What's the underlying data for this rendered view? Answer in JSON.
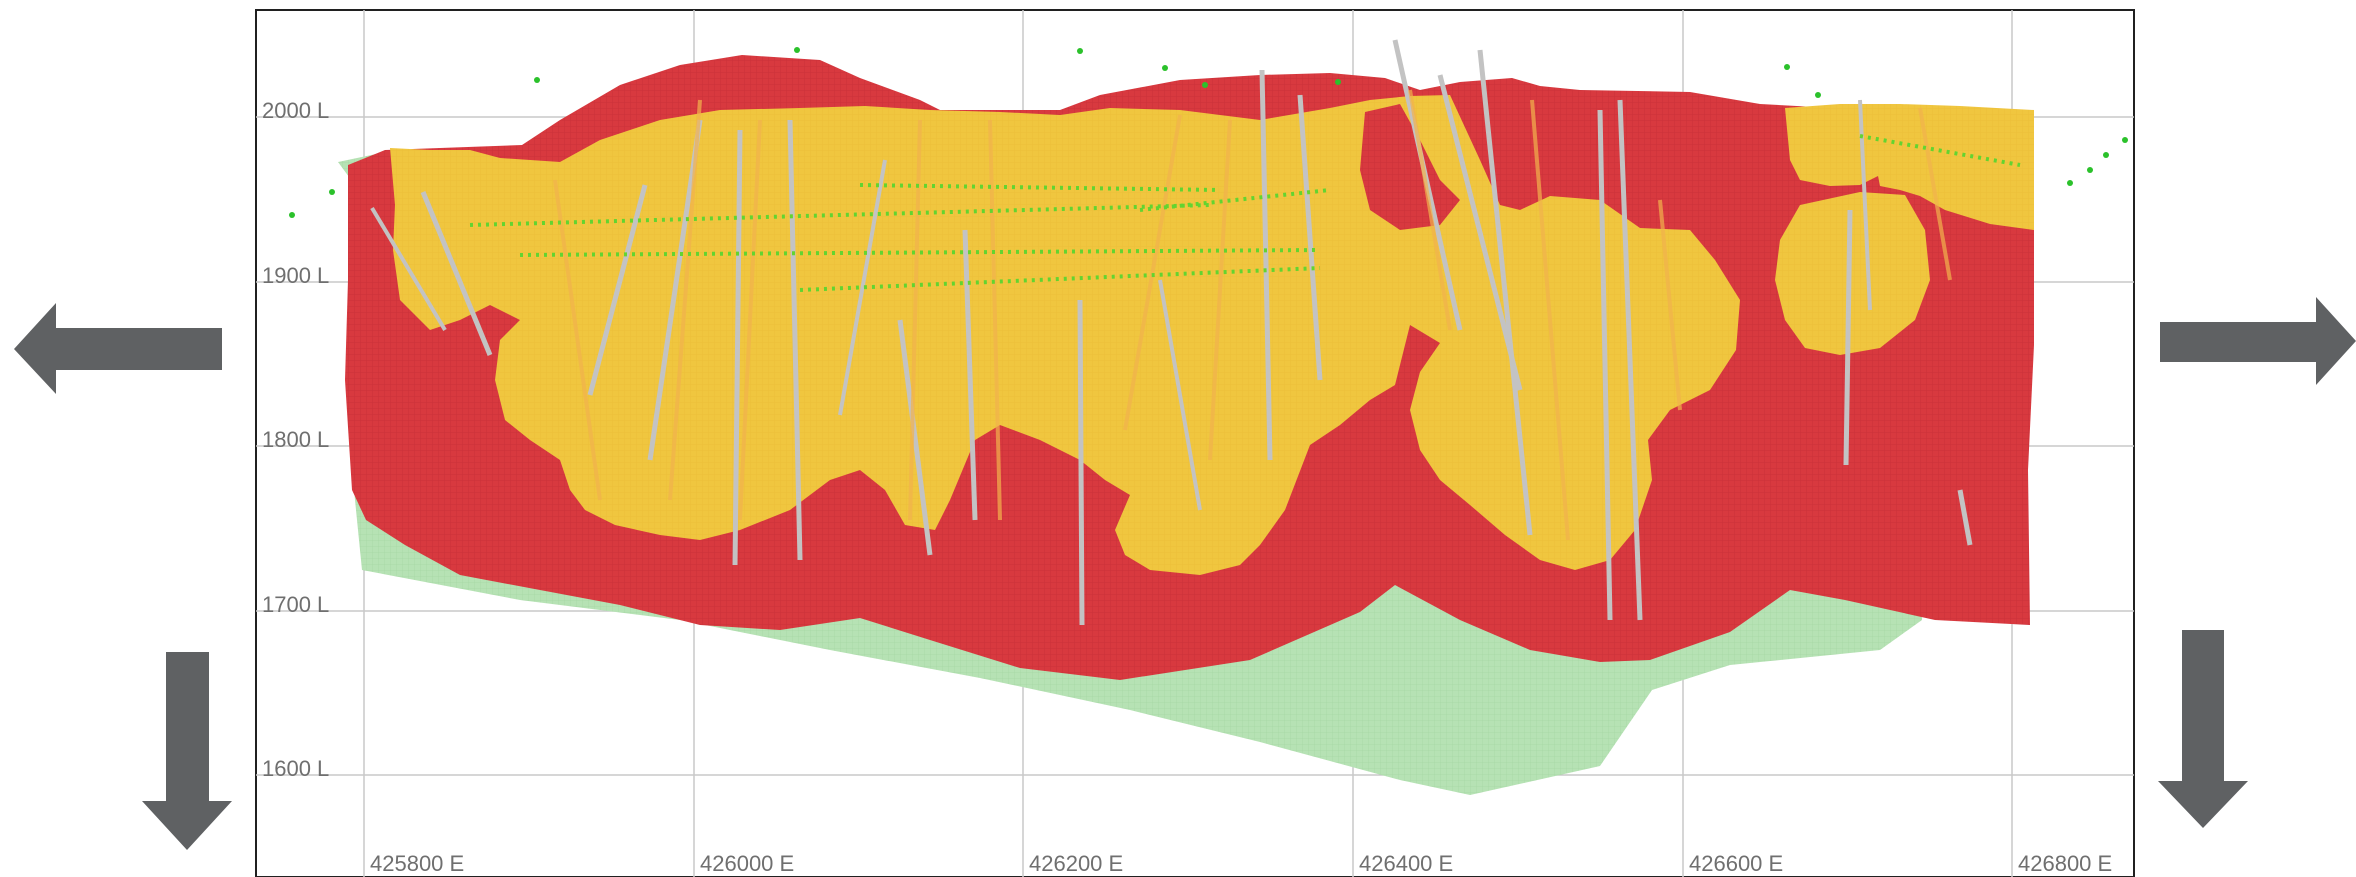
{
  "elevation_labels": [
    "2000 L",
    "1900 L",
    "1800 L",
    "1700 L",
    "1600 L"
  ],
  "easting_labels": [
    "425800 E",
    "426000 E",
    "426200 E",
    "426400 E",
    "426600 E",
    "426800 E"
  ],
  "legend_colors": {
    "red_zone": "#d8393f",
    "yellow_zone": "#f0c63f",
    "green_zone": "#b6e2b4",
    "drillhole": "#c3c3c3",
    "grid_line": "#c9c9c9",
    "arrow": "#5f6163"
  },
  "icons": {
    "left": "arrow-left-icon",
    "right": "arrow-right-icon",
    "down_left": "arrow-down-icon",
    "down_right": "arrow-down-icon"
  }
}
